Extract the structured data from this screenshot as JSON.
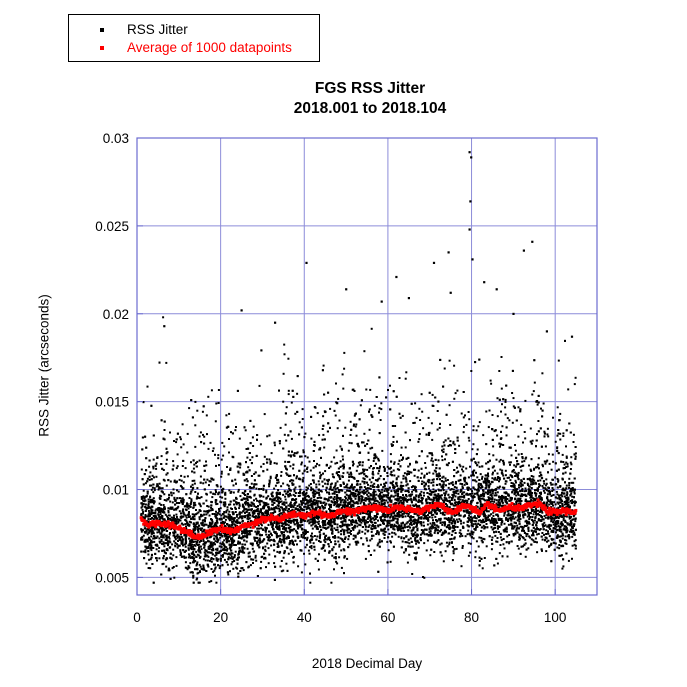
{
  "chart_data": {
    "type": "scatter",
    "title": "FGS RSS Jitter",
    "subtitle": "2018.001 to 2018.104",
    "xlabel": "2018 Decimal Day",
    "ylabel": "RSS Jitter (arcseconds)",
    "xlim": [
      0,
      110
    ],
    "ylim": [
      0.004,
      0.03
    ],
    "xticks": [
      "0",
      "20",
      "40",
      "60",
      "80",
      "100"
    ],
    "yticks": [
      "0.005",
      "0.01",
      "0.015",
      "0.02",
      "0.025",
      "0.03"
    ],
    "grid": true,
    "legend_position": "top-left",
    "series": [
      {
        "name": "RSS Jitter",
        "color": "#000000",
        "x_range": [
          1,
          105
        ],
        "typical_y_range": [
          0.005,
          0.013
        ],
        "outliers": [
          {
            "x": 40.5,
            "y": 0.0229
          },
          {
            "x": 79.5,
            "y": 0.0292
          },
          {
            "x": 79.9,
            "y": 0.0289
          },
          {
            "x": 79.7,
            "y": 0.0264
          },
          {
            "x": 74.5,
            "y": 0.0235
          },
          {
            "x": 94.5,
            "y": 0.0241
          },
          {
            "x": 92.5,
            "y": 0.0236
          },
          {
            "x": 62,
            "y": 0.0221
          },
          {
            "x": 71,
            "y": 0.0229
          },
          {
            "x": 79.5,
            "y": 0.0248
          },
          {
            "x": 80.2,
            "y": 0.0231
          },
          {
            "x": 25,
            "y": 0.0202
          },
          {
            "x": 50,
            "y": 0.0214
          },
          {
            "x": 6.5,
            "y": 0.0193
          },
          {
            "x": 58.5,
            "y": 0.0207
          },
          {
            "x": 65,
            "y": 0.0209
          },
          {
            "x": 33,
            "y": 0.0195
          },
          {
            "x": 83,
            "y": 0.0218
          },
          {
            "x": 86,
            "y": 0.0214
          },
          {
            "x": 90,
            "y": 0.02
          },
          {
            "x": 98,
            "y": 0.019
          },
          {
            "x": 104,
            "y": 0.0187
          },
          {
            "x": 75,
            "y": 0.0212
          }
        ]
      },
      {
        "name": "Average of 1000 datapoints",
        "color": "#ff0000",
        "x": [
          1,
          3,
          5,
          8,
          10,
          12,
          14,
          16,
          18,
          20,
          22,
          24,
          26,
          28,
          30,
          32,
          34,
          36,
          38,
          40,
          42,
          44,
          46,
          48,
          50,
          52,
          54,
          56,
          58,
          60,
          62,
          64,
          66,
          68,
          70,
          72,
          74,
          76,
          78,
          80,
          82,
          84,
          86,
          88,
          90,
          92,
          94,
          96,
          98,
          100,
          102,
          105
        ],
        "y": [
          0.0082,
          0.008,
          0.0081,
          0.008,
          0.0078,
          0.0076,
          0.0073,
          0.0074,
          0.0076,
          0.0078,
          0.0076,
          0.0077,
          0.008,
          0.0081,
          0.0083,
          0.0084,
          0.0083,
          0.0085,
          0.0086,
          0.0085,
          0.0087,
          0.0086,
          0.0085,
          0.0087,
          0.0088,
          0.0087,
          0.0089,
          0.009,
          0.0089,
          0.0088,
          0.009,
          0.0089,
          0.0088,
          0.0088,
          0.009,
          0.0092,
          0.0088,
          0.0087,
          0.0091,
          0.009,
          0.0086,
          0.0092,
          0.0088,
          0.0089,
          0.009,
          0.0089,
          0.0091,
          0.0092,
          0.0088,
          0.0087,
          0.0088,
          0.0087
        ]
      }
    ]
  }
}
